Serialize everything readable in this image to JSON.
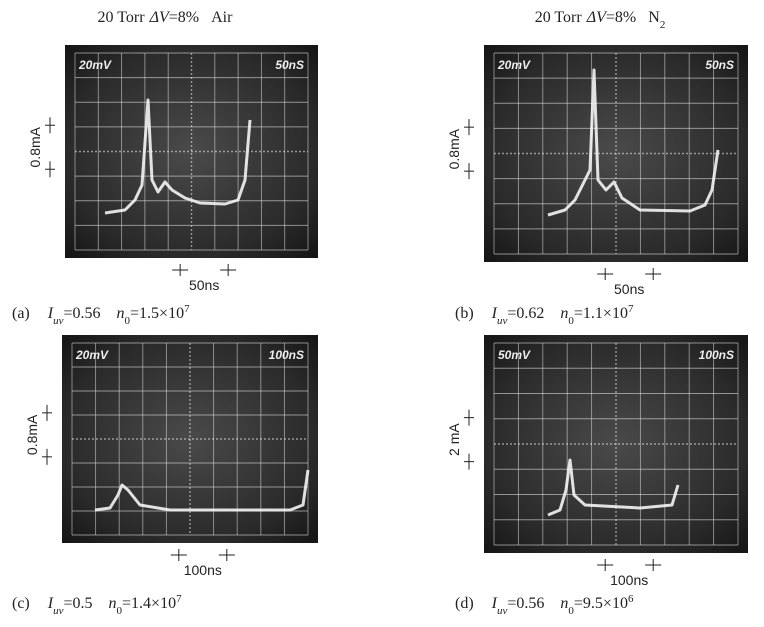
{
  "panels": [
    {
      "header": {
        "pressure": "20 Torr",
        "symbol": "ΔV",
        "value": "=8%",
        "gas": "Air"
      },
      "scope": {
        "volts_per_div": "20mV",
        "time_per_div": "50nS"
      },
      "scale_current": "0.8mA",
      "scale_time": "50ns",
      "caption": {
        "label": "(a)",
        "i_symbol": "I",
        "i_sub": "uv",
        "i_value": "=0.56",
        "n_symbol": "n",
        "n_sub": "0",
        "n_value": "=1.5×10",
        "n_exp": "7"
      }
    },
    {
      "header": {
        "pressure": "20 Torr",
        "symbol": "ΔV",
        "value": "=8%",
        "gas": "N",
        "gas_sub": "2"
      },
      "scope": {
        "volts_per_div": "20mV",
        "time_per_div": "50nS"
      },
      "scale_current": "0.8mA",
      "scale_time": "50ns",
      "caption": {
        "label": "(b)",
        "i_symbol": "I",
        "i_sub": "uv",
        "i_value": "=0.62",
        "n_symbol": "n",
        "n_sub": "0",
        "n_value": "=1.1×10",
        "n_exp": "7"
      }
    },
    {
      "scope": {
        "volts_per_div": "20mV",
        "time_per_div": "100nS"
      },
      "scale_current": "0.8mA",
      "scale_time": "100ns",
      "caption": {
        "label": "(c)",
        "i_symbol": "I",
        "i_sub": "uv",
        "i_value": "=0.5",
        "n_symbol": "n",
        "n_sub": "0",
        "n_value": "=1.4×10",
        "n_exp": "7"
      }
    },
    {
      "scope": {
        "volts_per_div": "50mV",
        "time_per_div": "100nS"
      },
      "scale_current": "2 mA",
      "scale_time": "100ns",
      "caption": {
        "label": "(d)",
        "i_symbol": "I",
        "i_sub": "uv",
        "i_value": "=0.56",
        "n_symbol": "n",
        "n_sub": "0",
        "n_value": "=9.5×10",
        "n_exp": "6"
      }
    }
  ]
}
